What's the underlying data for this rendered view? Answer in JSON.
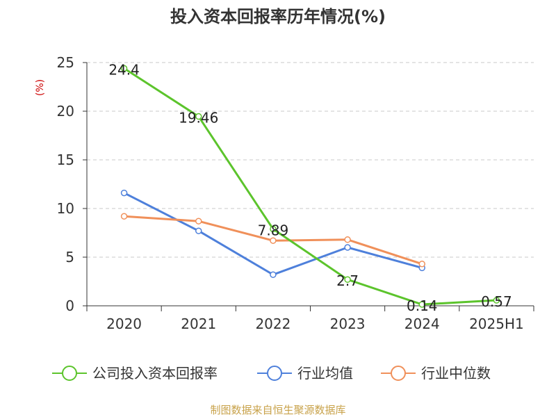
{
  "chart_data": {
    "type": "line",
    "title": "投入资本回报率历年情况(%)",
    "ylabel": "(%)",
    "xlabel": "",
    "categories": [
      "2020",
      "2021",
      "2022",
      "2023",
      "2024",
      "2025H1"
    ],
    "ylim": [
      0,
      25
    ],
    "yticks": [
      0,
      5,
      10,
      15,
      20,
      25
    ],
    "grid": true,
    "legend_position": "bottom",
    "series": [
      {
        "name": "公司投入资本回报率",
        "color": "#5cc42c",
        "values": [
          24.4,
          19.46,
          7.89,
          2.7,
          0.14,
          0.57
        ],
        "data_labels": [
          "24.4",
          "19.46",
          "7.89",
          "2.7",
          "0.14",
          "0.57"
        ]
      },
      {
        "name": "行业均值",
        "color": "#4e80db",
        "values": [
          11.6,
          7.7,
          3.2,
          6.0,
          3.9,
          null
        ]
      },
      {
        "name": "行业中位数",
        "color": "#f0905a",
        "values": [
          9.2,
          8.7,
          6.7,
          6.8,
          4.3,
          null
        ]
      }
    ],
    "source": "制图数据来自恒生聚源数据库"
  }
}
